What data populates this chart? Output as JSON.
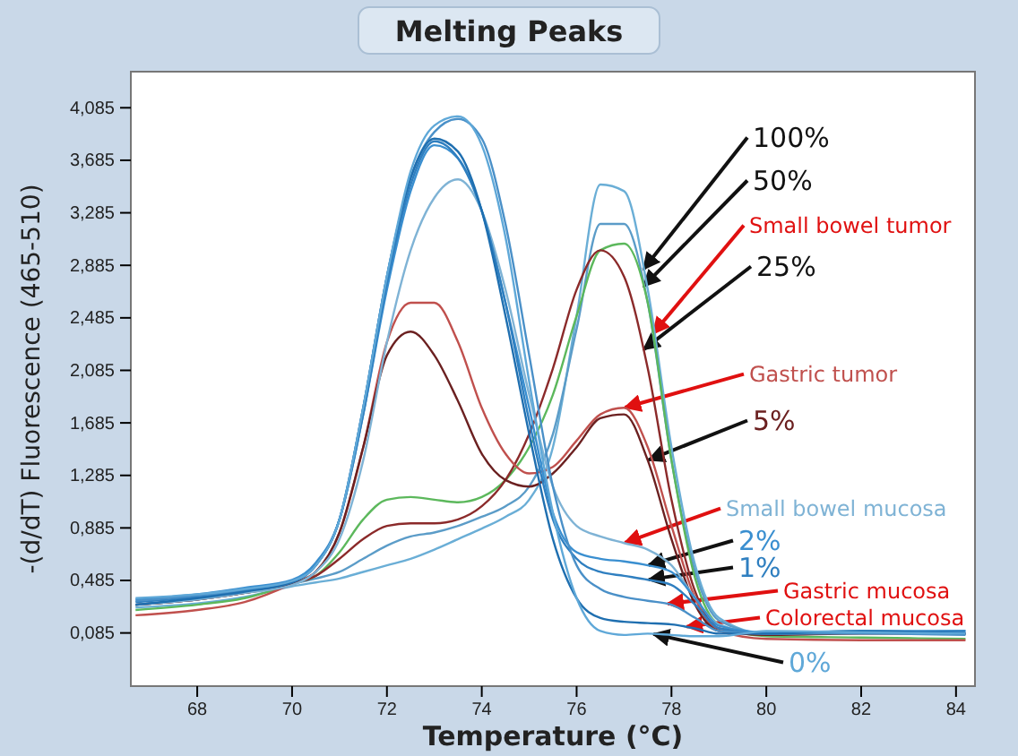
{
  "chart_data": {
    "type": "line",
    "title": "Melting Peaks",
    "xlabel": "Temperature (°C)",
    "ylabel": "-(d/dT) Fluorescence (465-510)",
    "x": [
      66.7,
      68,
      69,
      70,
      70.5,
      71,
      71.5,
      72,
      72.5,
      73,
      73.5,
      74,
      74.5,
      75,
      75.5,
      76,
      76.5,
      77,
      77.5,
      78,
      78.5,
      79,
      80,
      82,
      84.2
    ],
    "xlim": [
      66.6,
      84.4
    ],
    "xticks": [
      68,
      70,
      72,
      74,
      76,
      78,
      80,
      82,
      84
    ],
    "ylim": [
      -0.32,
      4.36
    ],
    "yticks": [
      {
        "value": 0.085,
        "label": "0,085"
      },
      {
        "value": 0.485,
        "label": "0,485"
      },
      {
        "value": 0.885,
        "label": "0,885"
      },
      {
        "value": 1.285,
        "label": "1,285"
      },
      {
        "value": 1.685,
        "label": "1,685"
      },
      {
        "value": 2.085,
        "label": "2,085"
      },
      {
        "value": 2.485,
        "label": "2,485"
      },
      {
        "value": 2.885,
        "label": "2,885"
      },
      {
        "value": 3.285,
        "label": "3,285"
      },
      {
        "value": 3.685,
        "label": "3,685"
      },
      {
        "value": 4.085,
        "label": "4,085"
      }
    ],
    "grid": false,
    "legend": false,
    "marker": "none",
    "line_style": "solid",
    "series": [
      {
        "name": "100%",
        "color": "#6aaed6",
        "values": [
          0.28,
          0.31,
          0.36,
          0.44,
          0.47,
          0.5,
          0.55,
          0.6,
          0.65,
          0.72,
          0.8,
          0.88,
          0.97,
          1.1,
          1.5,
          2.5,
          3.5,
          3.45,
          2.7,
          1.5,
          0.6,
          0.2,
          0.08,
          0.09,
          0.08
        ]
      },
      {
        "name": "50%",
        "color": "#5b9cc8",
        "values": [
          0.3,
          0.34,
          0.39,
          0.46,
          0.5,
          0.55,
          0.65,
          0.75,
          0.82,
          0.85,
          0.9,
          0.97,
          1.05,
          1.2,
          1.6,
          2.4,
          3.2,
          3.2,
          2.6,
          1.4,
          0.55,
          0.18,
          0.08,
          0.09,
          0.08
        ]
      },
      {
        "name": "Small bowel tumor",
        "color": "#5cb85c",
        "values": [
          0.26,
          0.3,
          0.35,
          0.46,
          0.52,
          0.7,
          0.95,
          1.1,
          1.12,
          1.1,
          1.08,
          1.12,
          1.25,
          1.5,
          1.9,
          2.5,
          3.0,
          3.05,
          2.6,
          1.4,
          0.5,
          0.15,
          0.06,
          0.05,
          0.04
        ]
      },
      {
        "name": "25%",
        "color": "#8b2a2a",
        "values": [
          0.3,
          0.34,
          0.39,
          0.46,
          0.52,
          0.65,
          0.8,
          0.9,
          0.92,
          0.92,
          0.95,
          1.05,
          1.25,
          1.6,
          2.1,
          2.7,
          3.0,
          2.8,
          2.1,
          1.1,
          0.4,
          0.12,
          0.08,
          0.09,
          0.08
        ]
      },
      {
        "name": "Gastric tumor",
        "color": "#c0504d",
        "values": [
          0.22,
          0.26,
          0.32,
          0.46,
          0.55,
          0.85,
          1.5,
          2.3,
          2.6,
          2.6,
          2.3,
          1.8,
          1.45,
          1.3,
          1.35,
          1.55,
          1.75,
          1.8,
          1.5,
          0.9,
          0.35,
          0.1,
          0.04,
          0.03,
          0.03
        ]
      },
      {
        "name": "5%",
        "color": "#6b2020",
        "values": [
          0.3,
          0.34,
          0.39,
          0.46,
          0.55,
          0.85,
          1.5,
          2.2,
          2.38,
          2.2,
          1.85,
          1.45,
          1.25,
          1.2,
          1.3,
          1.5,
          1.72,
          1.75,
          1.4,
          0.8,
          0.3,
          0.1,
          0.07,
          0.08,
          0.08
        ]
      },
      {
        "name": "Small bowel mucosa",
        "color": "#7fb3d5",
        "values": [
          0.3,
          0.34,
          0.39,
          0.45,
          0.55,
          0.8,
          1.4,
          2.3,
          3.0,
          3.4,
          3.54,
          3.3,
          2.7,
          1.9,
          1.2,
          0.9,
          0.82,
          0.77,
          0.72,
          0.6,
          0.35,
          0.15,
          0.08,
          0.09,
          0.08
        ]
      },
      {
        "name": "2%",
        "color": "#3a8fd0",
        "values": [
          0.34,
          0.38,
          0.43,
          0.49,
          0.62,
          0.95,
          1.75,
          2.7,
          3.45,
          3.8,
          3.7,
          3.3,
          2.6,
          1.8,
          1.0,
          0.7,
          0.65,
          0.63,
          0.6,
          0.55,
          0.35,
          0.14,
          0.09,
          0.1,
          0.1
        ]
      },
      {
        "name": "1%",
        "color": "#2f7fc0",
        "values": [
          0.32,
          0.36,
          0.41,
          0.47,
          0.6,
          0.95,
          1.75,
          2.75,
          3.5,
          3.83,
          3.7,
          3.3,
          2.6,
          1.7,
          0.95,
          0.65,
          0.55,
          0.52,
          0.49,
          0.45,
          0.3,
          0.12,
          0.08,
          0.09,
          0.1
        ]
      },
      {
        "name": "Gastric mucosa",
        "color": "#4a90c8",
        "values": [
          0.33,
          0.37,
          0.41,
          0.48,
          0.6,
          0.95,
          1.8,
          2.8,
          3.55,
          3.9,
          4.0,
          3.85,
          3.2,
          2.2,
          1.2,
          0.6,
          0.42,
          0.36,
          0.33,
          0.3,
          0.2,
          0.1,
          0.08,
          0.08,
          0.07
        ]
      },
      {
        "name": "Colorectal mucosa",
        "color": "#1f6fb0",
        "values": [
          0.3,
          0.35,
          0.4,
          0.47,
          0.6,
          0.95,
          1.8,
          2.8,
          3.55,
          3.85,
          3.75,
          3.3,
          2.5,
          1.6,
          0.8,
          0.35,
          0.2,
          0.17,
          0.16,
          0.15,
          0.12,
          0.08,
          0.08,
          0.1,
          0.08
        ]
      },
      {
        "name": "0%",
        "color": "#5fa8d8",
        "values": [
          0.35,
          0.38,
          0.42,
          0.48,
          0.6,
          0.95,
          1.8,
          2.8,
          3.6,
          3.95,
          4.02,
          3.8,
          3.1,
          2.0,
          1.0,
          0.35,
          0.1,
          0.07,
          0.08,
          0.07,
          0.06,
          0.06,
          0.1,
          0.09,
          0.08
        ]
      }
    ]
  }
}
